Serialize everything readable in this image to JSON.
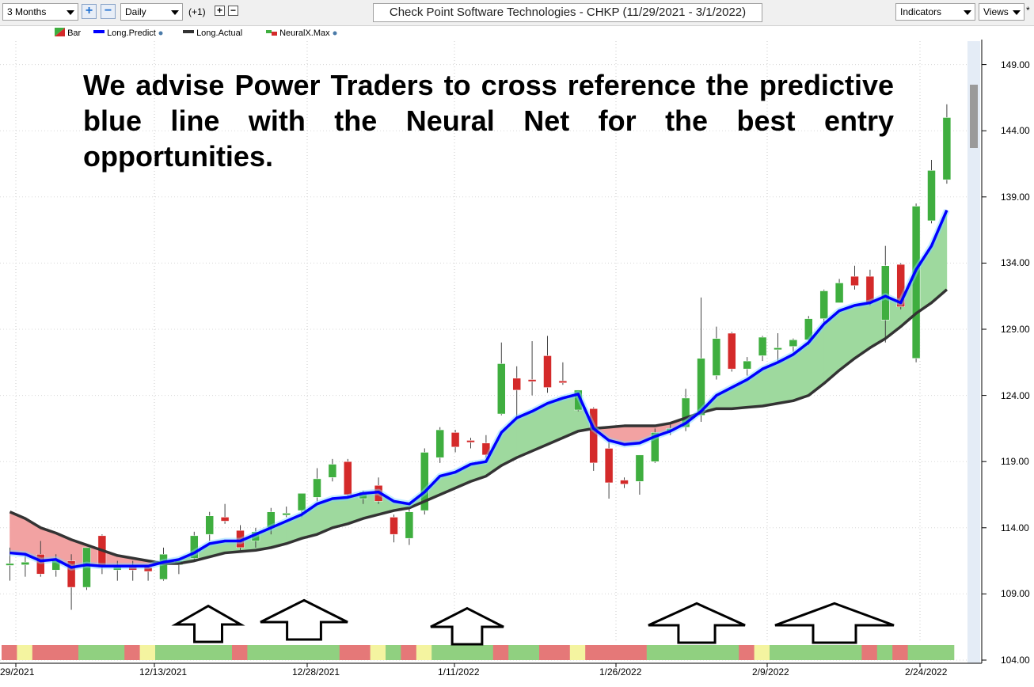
{
  "toolbar": {
    "period": "3 Months",
    "zoom_in": "+",
    "zoom_out": "−",
    "interval": "Daily",
    "offset": "(+1)",
    "small_plus": "+",
    "small_minus": "−",
    "title": "Check Point Software Technologies - CHKP (11/29/2021 - 3/1/2022)",
    "indicators": "Indicators",
    "views": "Views",
    "star": "*"
  },
  "legend": [
    {
      "label": "Bar",
      "icon": "bar-legend-icon"
    },
    {
      "label": "Long.Predict",
      "color": "#0000ff"
    },
    {
      "label": "Long.Actual",
      "color": "#333333"
    },
    {
      "label": "NeuralX.Max",
      "icon": "neuralx-legend-icon"
    }
  ],
  "annotation": "We advise Power Traders to cross reference the predictive blue line with the Neural Net for the best entry opportunities.",
  "colors": {
    "up": "#3fae3f",
    "down": "#d42a2a",
    "predict": "#0000ff",
    "actual": "#333333",
    "fill_up": "#9ed99e",
    "fill_down": "#f2a2a2",
    "strip_green": "#90d080",
    "strip_red": "#e57878",
    "strip_yellow": "#f4f4a0"
  },
  "chart_data": {
    "type": "candlestick",
    "x_tick_labels": [
      "29/2021",
      "12/13/2021",
      "12/28/2021",
      "1/11/2022",
      "1/26/2022",
      "2/9/2022",
      "2/24/2022"
    ],
    "y_tick_labels": [
      "104.00",
      "109.00",
      "114.00",
      "119.00",
      "124.00",
      "129.00",
      "134.00",
      "139.00",
      "144.00",
      "149.00"
    ],
    "ylim": [
      104,
      150.5
    ],
    "candles": [
      {
        "o": 111.3,
        "h": 112.5,
        "l": 110.0,
        "c": 111.3
      },
      {
        "o": 111.2,
        "h": 112.0,
        "l": 110.3,
        "c": 111.4
      },
      {
        "o": 112.0,
        "h": 113.0,
        "l": 110.3,
        "c": 110.5
      },
      {
        "o": 110.8,
        "h": 112.0,
        "l": 110.3,
        "c": 111.5
      },
      {
        "o": 111.5,
        "h": 112.0,
        "l": 107.8,
        "c": 109.5
      },
      {
        "o": 109.5,
        "h": 112.5,
        "l": 109.3,
        "c": 112.5
      },
      {
        "o": 113.4,
        "h": 113.5,
        "l": 110.5,
        "c": 111.0
      },
      {
        "o": 110.8,
        "h": 111.5,
        "l": 110.0,
        "c": 111.0
      },
      {
        "o": 111.0,
        "h": 111.5,
        "l": 110.0,
        "c": 110.8
      },
      {
        "o": 111.0,
        "h": 111.2,
        "l": 110.0,
        "c": 110.7
      },
      {
        "o": 110.1,
        "h": 112.5,
        "l": 110.0,
        "c": 112.0
      },
      {
        "o": 111.2,
        "h": 111.7,
        "l": 110.5,
        "c": 111.5
      },
      {
        "o": 111.7,
        "h": 113.7,
        "l": 111.6,
        "c": 113.4
      },
      {
        "o": 113.5,
        "h": 115.2,
        "l": 113.0,
        "c": 114.9
      },
      {
        "o": 114.8,
        "h": 115.8,
        "l": 114.3,
        "c": 114.5
      },
      {
        "o": 113.8,
        "h": 114.2,
        "l": 112.3,
        "c": 112.5
      },
      {
        "o": 113.0,
        "h": 114.0,
        "l": 112.5,
        "c": 113.7
      },
      {
        "o": 114.0,
        "h": 115.5,
        "l": 113.5,
        "c": 115.2
      },
      {
        "o": 115.0,
        "h": 115.6,
        "l": 114.8,
        "c": 115.1
      },
      {
        "o": 115.3,
        "h": 116.5,
        "l": 114.8,
        "c": 116.6
      },
      {
        "o": 116.3,
        "h": 118.5,
        "l": 116.0,
        "c": 117.7
      },
      {
        "o": 117.8,
        "h": 119.2,
        "l": 117.5,
        "c": 118.8
      },
      {
        "o": 119.0,
        "h": 119.2,
        "l": 116.3,
        "c": 116.5
      },
      {
        "o": 116.2,
        "h": 116.8,
        "l": 115.8,
        "c": 116.7
      },
      {
        "o": 117.2,
        "h": 117.8,
        "l": 115.8,
        "c": 116.0
      },
      {
        "o": 114.8,
        "h": 115.0,
        "l": 112.9,
        "c": 113.5
      },
      {
        "o": 113.2,
        "h": 115.6,
        "l": 112.7,
        "c": 115.2
      },
      {
        "o": 115.3,
        "h": 120.0,
        "l": 115.0,
        "c": 119.7
      },
      {
        "o": 119.3,
        "h": 121.6,
        "l": 118.9,
        "c": 121.4
      },
      {
        "o": 121.2,
        "h": 121.4,
        "l": 119.7,
        "c": 120.1
      },
      {
        "o": 120.6,
        "h": 120.8,
        "l": 120.0,
        "c": 120.5
      },
      {
        "o": 120.4,
        "h": 121.0,
        "l": 119.3,
        "c": 119.5
      },
      {
        "o": 122.6,
        "h": 128.0,
        "l": 122.5,
        "c": 126.4
      },
      {
        "o": 125.3,
        "h": 126.2,
        "l": 122.3,
        "c": 124.4
      },
      {
        "o": 125.2,
        "h": 128.1,
        "l": 124.0,
        "c": 125.1
      },
      {
        "o": 127.0,
        "h": 128.5,
        "l": 124.2,
        "c": 124.6
      },
      {
        "o": 125.1,
        "h": 126.5,
        "l": 124.8,
        "c": 125.0
      },
      {
        "o": 122.9,
        "h": 124.4,
        "l": 122.8,
        "c": 124.4
      },
      {
        "o": 123.0,
        "h": 123.1,
        "l": 118.3,
        "c": 118.9
      },
      {
        "o": 120.0,
        "h": 120.5,
        "l": 116.2,
        "c": 117.4
      },
      {
        "o": 117.6,
        "h": 117.8,
        "l": 117.0,
        "c": 117.3
      },
      {
        "o": 117.5,
        "h": 119.5,
        "l": 116.5,
        "c": 119.5
      },
      {
        "o": 119.0,
        "h": 121.5,
        "l": 118.9,
        "c": 121.2
      },
      {
        "o": 121.3,
        "h": 121.8,
        "l": 121.0,
        "c": 121.5
      },
      {
        "o": 121.6,
        "h": 124.5,
        "l": 121.3,
        "c": 123.8
      },
      {
        "o": 122.5,
        "h": 131.4,
        "l": 122.0,
        "c": 126.8
      },
      {
        "o": 125.5,
        "h": 129.2,
        "l": 125.2,
        "c": 128.3
      },
      {
        "o": 128.7,
        "h": 128.8,
        "l": 125.8,
        "c": 126.0
      },
      {
        "o": 126.0,
        "h": 126.9,
        "l": 125.5,
        "c": 126.6
      },
      {
        "o": 127.0,
        "h": 128.5,
        "l": 126.6,
        "c": 128.4
      },
      {
        "o": 127.5,
        "h": 128.7,
        "l": 126.6,
        "c": 127.6
      },
      {
        "o": 127.7,
        "h": 128.3,
        "l": 127.3,
        "c": 128.2
      },
      {
        "o": 128.2,
        "h": 130.0,
        "l": 127.8,
        "c": 129.8
      },
      {
        "o": 129.8,
        "h": 132.0,
        "l": 129.5,
        "c": 131.9
      },
      {
        "o": 131.0,
        "h": 132.8,
        "l": 131.0,
        "c": 132.5
      },
      {
        "o": 133.0,
        "h": 133.8,
        "l": 132.0,
        "c": 132.3
      },
      {
        "o": 133.0,
        "h": 133.5,
        "l": 130.8,
        "c": 131.0
      },
      {
        "o": 129.7,
        "h": 135.3,
        "l": 128.0,
        "c": 133.8
      },
      {
        "o": 133.9,
        "h": 134.0,
        "l": 130.5,
        "c": 130.7
      },
      {
        "o": 126.8,
        "h": 138.5,
        "l": 126.5,
        "c": 138.3
      },
      {
        "o": 137.2,
        "h": 141.8,
        "l": 137.0,
        "c": 141.0
      },
      {
        "o": 140.3,
        "h": 146.0,
        "l": 140.0,
        "c": 145.0
      }
    ],
    "long_predict": [
      112.1,
      112.0,
      111.5,
      111.6,
      111.0,
      111.2,
      111.1,
      111.1,
      111.1,
      111.1,
      111.4,
      111.6,
      112.1,
      112.8,
      113.0,
      113.0,
      113.5,
      114.0,
      114.5,
      115.0,
      115.8,
      116.2,
      116.3,
      116.6,
      116.7,
      116.0,
      115.8,
      116.7,
      117.9,
      118.2,
      118.8,
      119.0,
      121.2,
      122.3,
      122.8,
      123.4,
      123.8,
      124.1,
      121.5,
      120.6,
      120.3,
      120.4,
      120.9,
      121.3,
      121.9,
      122.8,
      124.0,
      124.6,
      125.2,
      126.0,
      126.5,
      127.1,
      128.0,
      129.4,
      130.4,
      130.8,
      131.0,
      131.5,
      131.0,
      133.5,
      135.3,
      138.0
    ],
    "long_actual": [
      115.2,
      114.7,
      114.0,
      113.6,
      113.1,
      112.7,
      112.3,
      111.9,
      111.7,
      111.5,
      111.3,
      111.3,
      111.5,
      111.8,
      112.1,
      112.2,
      112.3,
      112.5,
      112.8,
      113.2,
      113.5,
      114.0,
      114.3,
      114.7,
      115.0,
      115.3,
      115.5,
      116.0,
      116.5,
      117.0,
      117.5,
      117.9,
      118.7,
      119.3,
      119.8,
      120.3,
      120.8,
      121.3,
      121.5,
      121.6,
      121.7,
      121.7,
      121.7,
      121.9,
      122.3,
      122.7,
      123.0,
      123.0,
      123.1,
      123.2,
      123.4,
      123.6,
      124.0,
      124.9,
      125.9,
      126.8,
      127.6,
      128.3,
      129.2,
      130.2,
      131.0,
      132.0
    ],
    "neuralx_strip": [
      "r",
      "y",
      "r",
      "r",
      "r",
      "g",
      "g",
      "g",
      "r",
      "y",
      "g",
      "g",
      "g",
      "g",
      "g",
      "r",
      "g",
      "g",
      "g",
      "g",
      "g",
      "g",
      "r",
      "r",
      "y",
      "g",
      "r",
      "y",
      "g",
      "g",
      "g",
      "g",
      "r",
      "g",
      "g",
      "r",
      "r",
      "y",
      "r",
      "r",
      "r",
      "r",
      "g",
      "g",
      "g",
      "g",
      "g",
      "g",
      "r",
      "y",
      "g",
      "g",
      "g",
      "g",
      "g",
      "g",
      "r",
      "g",
      "r",
      "g",
      "g",
      "g"
    ]
  }
}
